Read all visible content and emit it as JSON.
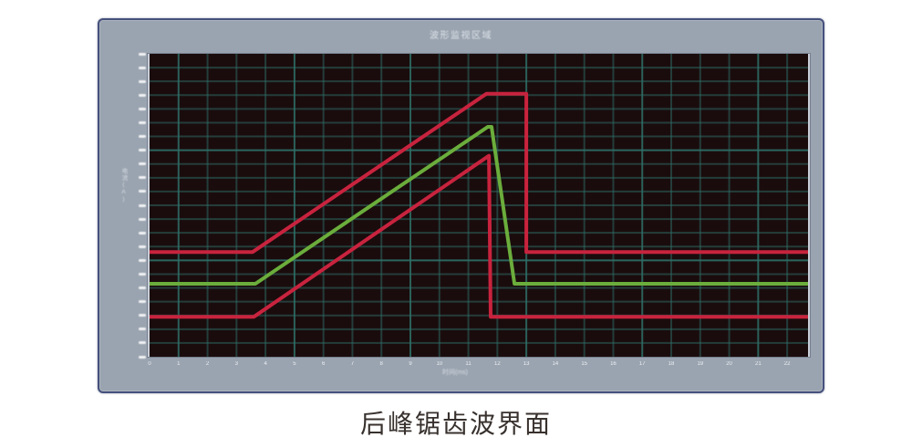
{
  "page": {
    "caption": "后峰锯齿波界面"
  },
  "window": {
    "title": "波形监视区域"
  },
  "colors": {
    "page_bg": "#ffffff",
    "frame": "#9aa4b0",
    "frame_border": "#46517c",
    "plot_bg": "#1a0c0d",
    "grid": "#2e6f67",
    "red": "#c8233e",
    "green": "#6bad3c",
    "tick_text": "#f0f3f7",
    "caption_text": "#38312e"
  },
  "chart_data": {
    "type": "line",
    "title": "波形监视区域",
    "xlabel": "时间(ms)",
    "ylabel": "电流(A)",
    "x_ticks": [
      "0",
      "1",
      "2",
      "3",
      "4",
      "5",
      "6",
      "7",
      "8",
      "9",
      "10",
      "11",
      "12",
      "13",
      "14",
      "15",
      "16",
      "17",
      "18",
      "19",
      "20",
      "21",
      "22"
    ],
    "x_range": [
      0,
      22.72
    ],
    "y_divisions": 22,
    "y_tick_count": 23,
    "y_tick_labels_illegible": true,
    "grid": {
      "cols": 23,
      "rows": 22,
      "visible": true,
      "color": "#2e6f67",
      "background": "#1a0c0d"
    },
    "legend": "none",
    "waveform_shape": "rear-peak sawtooth: flat base, slow linear rise, flat/sharp peak, steep fall back to base",
    "units_note": "x in axis tick units, y in grid divisions measured from plot bottom",
    "series": [
      {
        "name": "red-upper",
        "color": "#c8233e",
        "base_level": 7.6,
        "peak_level": 19.1,
        "points": [
          [
            0,
            7.6
          ],
          [
            3.55,
            7.6
          ],
          [
            11.62,
            19.1
          ],
          [
            13.0,
            19.1
          ],
          [
            13.0,
            7.6
          ],
          [
            22.72,
            7.6
          ]
        ]
      },
      {
        "name": "red-lower",
        "color": "#c8233e",
        "base_level": 2.9,
        "peak_level": 14.6,
        "points": [
          [
            0,
            2.9
          ],
          [
            3.6,
            2.9
          ],
          [
            11.71,
            14.6
          ],
          [
            11.77,
            2.9
          ],
          [
            22.72,
            2.9
          ]
        ]
      },
      {
        "name": "green-center",
        "color": "#6bad3c",
        "base_level": 5.3,
        "peak_level": 16.7,
        "points": [
          [
            0,
            5.3
          ],
          [
            3.65,
            5.3
          ],
          [
            11.67,
            16.7
          ],
          [
            11.8,
            16.7
          ],
          [
            12.59,
            5.3
          ],
          [
            22.72,
            5.3
          ]
        ]
      }
    ]
  }
}
